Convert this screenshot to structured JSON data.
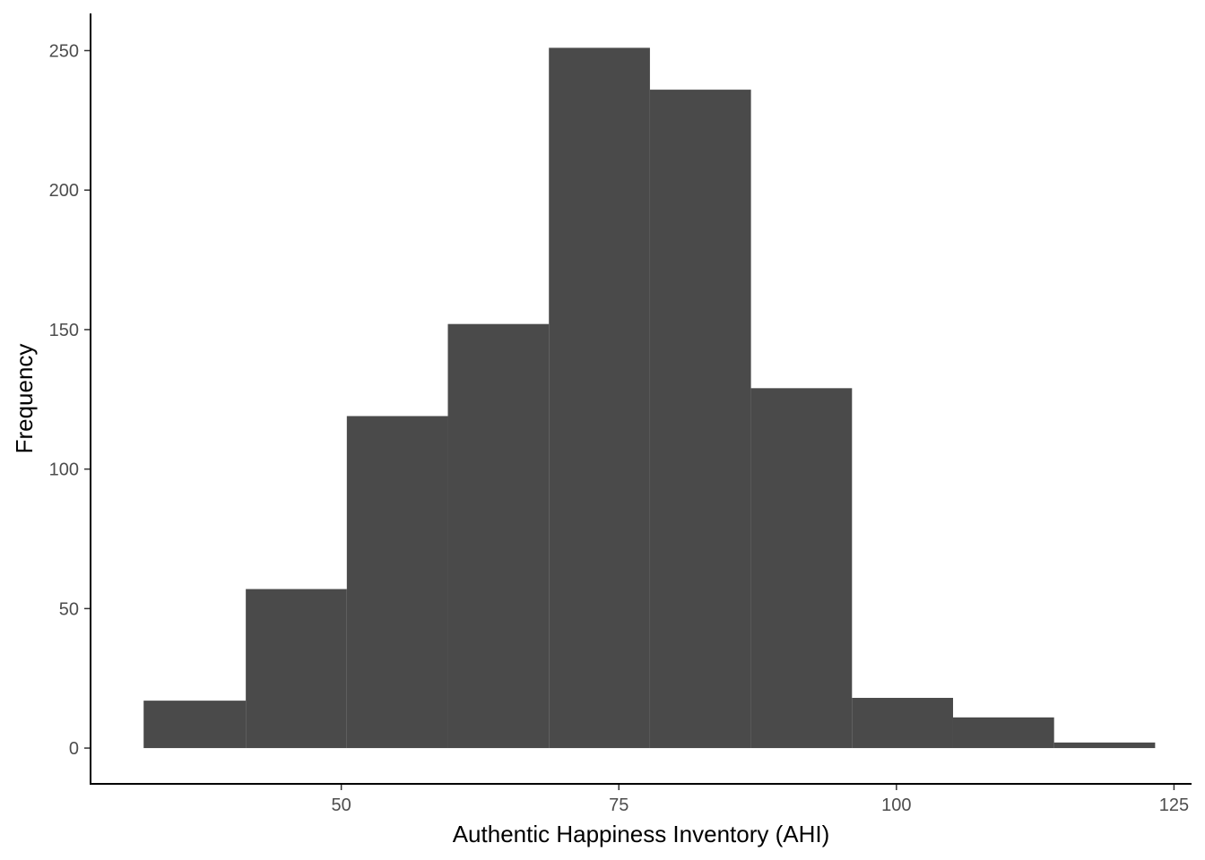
{
  "chart_data": {
    "type": "bar",
    "subtype": "histogram",
    "title": "",
    "xlabel": "Authentic Happiness Inventory (AHI)",
    "ylabel": "Frequency",
    "xlim": [
      27.5,
      126.5
    ],
    "ylim": [
      -12.5,
      263
    ],
    "x_ticks": [
      50,
      75,
      100,
      125
    ],
    "y_ticks": [
      0,
      50,
      100,
      150,
      200,
      250
    ],
    "grid": false,
    "bar_color": "#4a4a4a",
    "bins": [
      {
        "x0": 32.2,
        "x1": 41.4,
        "value": 17
      },
      {
        "x0": 41.4,
        "x1": 50.5,
        "value": 57
      },
      {
        "x0": 50.5,
        "x1": 59.6,
        "value": 119
      },
      {
        "x0": 59.6,
        "x1": 68.7,
        "value": 152
      },
      {
        "x0": 68.7,
        "x1": 77.8,
        "value": 251
      },
      {
        "x0": 77.8,
        "x1": 86.9,
        "value": 236
      },
      {
        "x0": 86.9,
        "x1": 96.0,
        "value": 129
      },
      {
        "x0": 96.0,
        "x1": 105.1,
        "value": 18
      },
      {
        "x0": 105.1,
        "x1": 114.2,
        "value": 11
      },
      {
        "x0": 114.2,
        "x1": 123.3,
        "value": 2
      }
    ]
  }
}
